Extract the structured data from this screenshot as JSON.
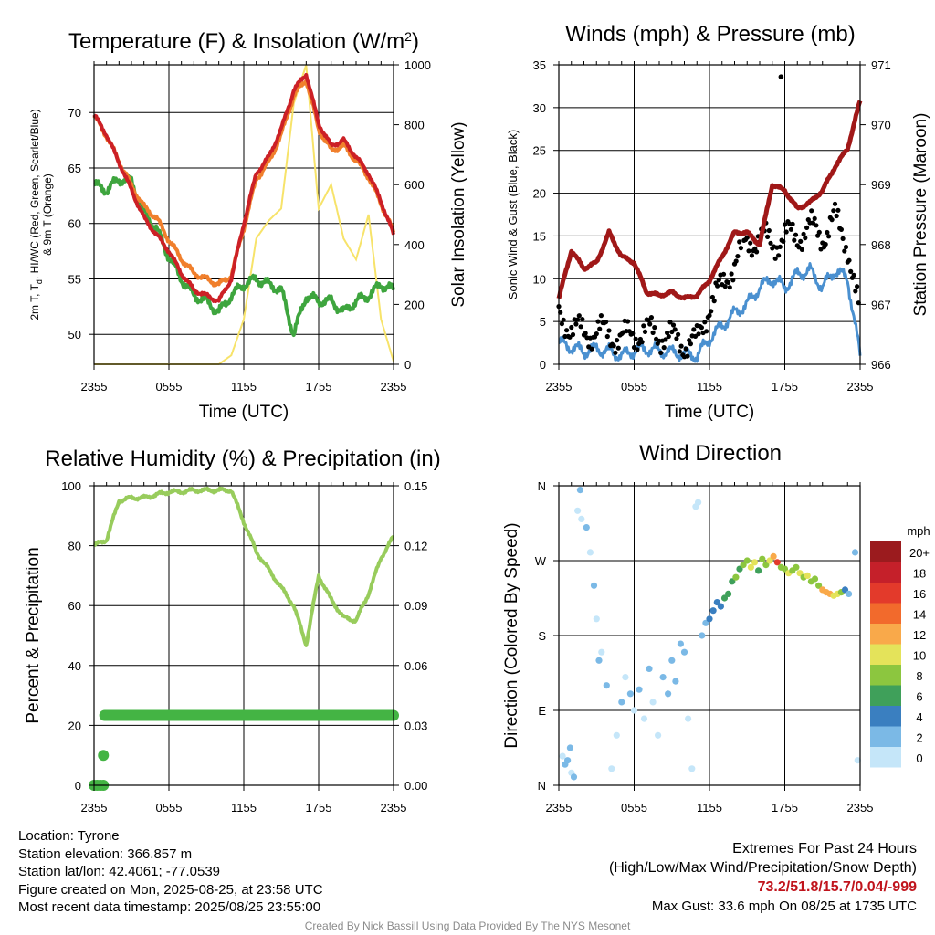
{
  "panels": {
    "temp": {
      "title": "Temperature (F) & Insolation (W/m",
      "title_sup": "2",
      "title_end": ")",
      "xlabel": "Time (UTC)",
      "ylabel_left_1": "2m T, T",
      "ylabel_left_sub": "d",
      "ylabel_left_2": ", HI/WC (Red, Green, Scarlet/Blue)",
      "ylabel_left_3": "& 9m T (Orange)",
      "ylabel_right": "Solar Insolation (Yellow)"
    },
    "wind": {
      "title": "Winds (mph) & Pressure (mb)",
      "xlabel": "Time (UTC)",
      "ylabel_left": "Sonic Wind & Gust (Blue, Black)",
      "ylabel_right": "Station Pressure (Maroon)"
    },
    "rh": {
      "title": "Relative Humidity (%) & Precipitation (in)",
      "ylabel_left": "Percent & Precipitation"
    },
    "dir": {
      "title": "Wind Direction",
      "ylabel_left": "Direction (Colored By Speed)",
      "legend_unit": "mph"
    }
  },
  "info": {
    "location": "Location: Tyrone",
    "elevation": "Station elevation: 366.857 m",
    "latlon": "Station lat/lon: 42.4061; -77.0539",
    "created": "Figure created on Mon, 2025-08-25, at 23:58 UTC",
    "recent": "Most recent data timestamp: 2025/08/25 23:55:00"
  },
  "extremes": {
    "title": "Extremes For Past 24 Hours",
    "subtitle": "(High/Low/Max Wind/Precipitation/Snow Depth)",
    "values": "73.2/51.8/15.7/0.04/-999",
    "gust": "Max Gust: 33.6 mph On 08/25 at 1735 UTC"
  },
  "credit": "Created By Nick Bassill Using Data Provided By The NYS Mesonet",
  "colors": {
    "temp": "#cc2026",
    "temp9m": "#f07f2c",
    "dewpoint": "#3ea53e",
    "solar": "#f7e36a",
    "wind": "#4a90d0",
    "gust": "#000000",
    "pressure": "#a01818",
    "rh": "#98cc5c",
    "precip": "#44b444"
  },
  "chart_data": [
    {
      "type": "line",
      "title": "Temperature (F) & Insolation (W/m2)",
      "xlabel": "Time (UTC)",
      "x_ticks": [
        "2355",
        "0555",
        "1155",
        "1755",
        "2355"
      ],
      "ylim": [
        47.3,
        74.3
      ],
      "y_ticks": [
        50,
        55,
        60,
        65,
        70
      ],
      "y2lim": [
        0,
        1000
      ],
      "y2_ticks": [
        0,
        200,
        400,
        600,
        800,
        1000
      ],
      "hours": [
        0,
        1,
        2,
        3,
        4,
        5,
        6,
        7,
        8,
        9,
        10,
        11,
        12,
        13,
        14,
        15,
        16,
        17,
        18,
        19,
        20,
        21,
        22,
        23,
        24
      ],
      "series": [
        {
          "name": "2m T",
          "axis": "left",
          "values": [
            69.8,
            68,
            65.5,
            63,
            60.5,
            59,
            57.5,
            55.5,
            54,
            53.5,
            53,
            55,
            60,
            64.5,
            66,
            68.5,
            72,
            73.5,
            69,
            67,
            67.5,
            66,
            64.5,
            62,
            59
          ]
        },
        {
          "name": "9m T",
          "axis": "left",
          "values": [
            69.7,
            67.9,
            65.6,
            63.4,
            61.5,
            60.5,
            58.5,
            56.8,
            55.5,
            55,
            54.5,
            55.3,
            59.6,
            64,
            65.5,
            68,
            71.5,
            73,
            68.5,
            66.6,
            67,
            65.7,
            64.2,
            61.8,
            59.2
          ]
        },
        {
          "name": "Td",
          "axis": "left",
          "values": [
            63.5,
            63,
            64,
            63.8,
            61,
            59.5,
            57,
            55,
            53.5,
            53,
            52,
            53.5,
            54.5,
            55,
            54.5,
            54,
            50,
            53.5,
            53,
            53,
            52,
            53,
            53.5,
            54.5,
            54
          ]
        },
        {
          "name": "Solar Insolation",
          "axis": "right",
          "values": [
            0,
            0,
            0,
            0,
            0,
            0,
            0,
            0,
            0,
            0,
            0,
            30,
            150,
            420,
            480,
            520,
            870,
            1000,
            520,
            600,
            420,
            350,
            500,
            150,
            10
          ]
        }
      ]
    },
    {
      "type": "line",
      "title": "Winds (mph) & Pressure (mb)",
      "xlabel": "Time (UTC)",
      "x_ticks": [
        "2355",
        "0555",
        "1155",
        "1755",
        "2355"
      ],
      "ylim": [
        0,
        35
      ],
      "y_ticks": [
        0,
        5,
        10,
        15,
        20,
        25,
        30,
        35
      ],
      "y2lim": [
        966,
        971
      ],
      "y2_ticks": [
        966,
        967,
        968,
        969,
        970,
        971
      ],
      "hours": [
        0,
        1,
        2,
        3,
        4,
        5,
        6,
        7,
        8,
        9,
        10,
        11,
        12,
        13,
        14,
        15,
        16,
        17,
        18,
        19,
        20,
        21,
        22,
        23,
        24
      ],
      "series": [
        {
          "name": "Sonic Wind",
          "axis": "left",
          "values": [
            2.5,
            2,
            1.5,
            1.8,
            1.5,
            1,
            1.6,
            1.8,
            1.6,
            1.4,
            1.2,
            1,
            3,
            4.5,
            6,
            7,
            9,
            10,
            9,
            10.5,
            11,
            9,
            11,
            10,
            1
          ]
        },
        {
          "name": "Gust",
          "axis": "left",
          "values": [
            5.5,
            4.5,
            3.5,
            4,
            3.5,
            3,
            3.5,
            3.8,
            3.5,
            3,
            2.5,
            2.5,
            7,
            9,
            12,
            14,
            15,
            14,
            15,
            15,
            16,
            15,
            17,
            14,
            5
          ]
        },
        {
          "name": "Station Pressure",
          "axis": "right",
          "values": [
            967.1,
            967.9,
            967.6,
            967.7,
            968.2,
            967.8,
            967.7,
            967.2,
            967.15,
            967.2,
            967.1,
            967.15,
            967.4,
            967.8,
            968.2,
            968.2,
            968,
            969,
            968.9,
            968.6,
            968.7,
            968.9,
            969.3,
            969.6,
            970.4
          ]
        }
      ],
      "max_gust_point": {
        "hour": 17.7,
        "value": 33.6
      }
    },
    {
      "type": "line",
      "title": "Relative Humidity (%) & Precipitation (in)",
      "x_ticks": [
        "2355",
        "0555",
        "1155",
        "1755",
        "2355"
      ],
      "ylim": [
        0,
        100
      ],
      "y_ticks": [
        0,
        20,
        40,
        60,
        80,
        100
      ],
      "y2lim": [
        0,
        0.15
      ],
      "y2_ticks": [
        "0.00",
        "0.03",
        "0.06",
        "0.09",
        "0.12",
        "0.15"
      ],
      "hours": [
        0,
        1,
        2,
        3,
        4,
        5,
        6,
        7,
        8,
        9,
        10,
        11,
        12,
        13,
        14,
        15,
        16,
        17,
        18,
        19,
        20,
        21,
        22,
        23,
        24
      ],
      "series": [
        {
          "name": "Relative Humidity",
          "axis": "left",
          "values": [
            80,
            82,
            95,
            96,
            96,
            97,
            98,
            98,
            98.5,
            98.5,
            98.5,
            98.5,
            88,
            78,
            72,
            66,
            60,
            47,
            70,
            62,
            56,
            55,
            64,
            76,
            83
          ]
        },
        {
          "name": "Precipitation",
          "axis": "right",
          "values": [
            0,
            0.035,
            0.035,
            0.035,
            0.035,
            0.035,
            0.035,
            0.035,
            0.035,
            0.035,
            0.035,
            0.035,
            0.035,
            0.035,
            0.035,
            0.035,
            0.035,
            0.035,
            0.035,
            0.035,
            0.035,
            0.035,
            0.035,
            0.035,
            0.035
          ]
        }
      ]
    },
    {
      "type": "scatter",
      "title": "Wind Direction",
      "x_ticks": [
        "2355",
        "0555",
        "1155",
        "1755",
        "2355"
      ],
      "y_ticks": [
        "N",
        "E",
        "S",
        "W",
        "N"
      ],
      "ylim_degrees": [
        0,
        360
      ],
      "legend_title": "mph",
      "legend_labels": [
        "20+",
        "18",
        "16",
        "14",
        "12",
        "10",
        "8",
        "6",
        "4",
        "2",
        "0"
      ],
      "legend_colors": [
        "#9b1b1e",
        "#c5202a",
        "#e33a2b",
        "#f26a2c",
        "#f9a94a",
        "#e4e35a",
        "#8cc63f",
        "#3fa05a",
        "#3a7fc0",
        "#7bb9e6",
        "#c5e6f9"
      ],
      "points": [
        {
          "h": 0.3,
          "d": 35,
          "s": 1
        },
        {
          "h": 0.5,
          "d": 25,
          "s": 2
        },
        {
          "h": 0.7,
          "d": 30,
          "s": 3
        },
        {
          "h": 0.9,
          "d": 45,
          "s": 2
        },
        {
          "h": 1.0,
          "d": 15,
          "s": 1
        },
        {
          "h": 1.2,
          "d": 10,
          "s": 2
        },
        {
          "h": 1.5,
          "d": 330,
          "s": 1
        },
        {
          "h": 1.7,
          "d": 355,
          "s": 2
        },
        {
          "h": 1.8,
          "d": 320,
          "s": 1
        },
        {
          "h": 2.2,
          "d": 310,
          "s": 2
        },
        {
          "h": 2.5,
          "d": 280,
          "s": 1
        },
        {
          "h": 2.8,
          "d": 240,
          "s": 2
        },
        {
          "h": 3.0,
          "d": 200,
          "s": 1
        },
        {
          "h": 3.2,
          "d": 150,
          "s": 2
        },
        {
          "h": 3.4,
          "d": 160,
          "s": 1
        },
        {
          "h": 3.8,
          "d": 120,
          "s": 2
        },
        {
          "h": 4.2,
          "d": 20,
          "s": 1
        },
        {
          "h": 4.6,
          "d": 60,
          "s": 1
        },
        {
          "h": 5.0,
          "d": 100,
          "s": 2
        },
        {
          "h": 5.3,
          "d": 130,
          "s": 1
        },
        {
          "h": 5.7,
          "d": 110,
          "s": 2
        },
        {
          "h": 6.0,
          "d": 90,
          "s": 1
        },
        {
          "h": 6.4,
          "d": 115,
          "s": 2
        },
        {
          "h": 6.8,
          "d": 80,
          "s": 1
        },
        {
          "h": 7.2,
          "d": 140,
          "s": 2
        },
        {
          "h": 7.5,
          "d": 100,
          "s": 1
        },
        {
          "h": 7.9,
          "d": 60,
          "s": 1
        },
        {
          "h": 8.3,
          "d": 130,
          "s": 2
        },
        {
          "h": 8.7,
          "d": 110,
          "s": 2
        },
        {
          "h": 9.0,
          "d": 150,
          "s": 3
        },
        {
          "h": 9.3,
          "d": 125,
          "s": 2
        },
        {
          "h": 9.7,
          "d": 170,
          "s": 3
        },
        {
          "h": 10.0,
          "d": 160,
          "s": 2
        },
        {
          "h": 10.3,
          "d": 80,
          "s": 1
        },
        {
          "h": 10.6,
          "d": 20,
          "s": 1
        },
        {
          "h": 10.9,
          "d": 335,
          "s": 1
        },
        {
          "h": 11.1,
          "d": 340,
          "s": 1
        },
        {
          "h": 11.4,
          "d": 180,
          "s": 3
        },
        {
          "h": 11.7,
          "d": 195,
          "s": 3
        },
        {
          "h": 12.0,
          "d": 200,
          "s": 4
        },
        {
          "h": 12.3,
          "d": 210,
          "s": 4
        },
        {
          "h": 12.6,
          "d": 220,
          "s": 5
        },
        {
          "h": 12.9,
          "d": 215,
          "s": 5
        },
        {
          "h": 13.2,
          "d": 225,
          "s": 6
        },
        {
          "h": 13.5,
          "d": 230,
          "s": 6
        },
        {
          "h": 13.8,
          "d": 245,
          "s": 7
        },
        {
          "h": 14.1,
          "d": 250,
          "s": 8
        },
        {
          "h": 14.4,
          "d": 260,
          "s": 7
        },
        {
          "h": 14.7,
          "d": 265,
          "s": 9
        },
        {
          "h": 15.0,
          "d": 270,
          "s": 8
        },
        {
          "h": 15.3,
          "d": 262,
          "s": 10
        },
        {
          "h": 15.6,
          "d": 268,
          "s": 11
        },
        {
          "h": 15.9,
          "d": 258,
          "s": 7
        },
        {
          "h": 16.2,
          "d": 272,
          "s": 9
        },
        {
          "h": 16.5,
          "d": 265,
          "s": 8
        },
        {
          "h": 16.8,
          "d": 270,
          "s": 10
        },
        {
          "h": 17.1,
          "d": 275,
          "s": 12
        },
        {
          "h": 17.4,
          "d": 268,
          "s": 16
        },
        {
          "h": 17.7,
          "d": 262,
          "s": 9
        },
        {
          "h": 18.0,
          "d": 260,
          "s": 8
        },
        {
          "h": 18.3,
          "d": 255,
          "s": 10
        },
        {
          "h": 18.6,
          "d": 258,
          "s": 8
        },
        {
          "h": 18.9,
          "d": 262,
          "s": 9
        },
        {
          "h": 19.2,
          "d": 255,
          "s": 10
        },
        {
          "h": 19.5,
          "d": 250,
          "s": 8
        },
        {
          "h": 19.8,
          "d": 252,
          "s": 11
        },
        {
          "h": 20.1,
          "d": 245,
          "s": 8
        },
        {
          "h": 20.4,
          "d": 248,
          "s": 9
        },
        {
          "h": 20.7,
          "d": 240,
          "s": 8
        },
        {
          "h": 21.0,
          "d": 235,
          "s": 12
        },
        {
          "h": 21.3,
          "d": 232,
          "s": 13
        },
        {
          "h": 21.6,
          "d": 230,
          "s": 12
        },
        {
          "h": 21.9,
          "d": 228,
          "s": 10
        },
        {
          "h": 22.2,
          "d": 230,
          "s": 11
        },
        {
          "h": 22.5,
          "d": 232,
          "s": 8
        },
        {
          "h": 22.8,
          "d": 235,
          "s": 4
        },
        {
          "h": 23.1,
          "d": 230,
          "s": 3
        },
        {
          "h": 23.6,
          "d": 280,
          "s": 2
        },
        {
          "h": 23.8,
          "d": 30,
          "s": 1
        }
      ]
    }
  ]
}
